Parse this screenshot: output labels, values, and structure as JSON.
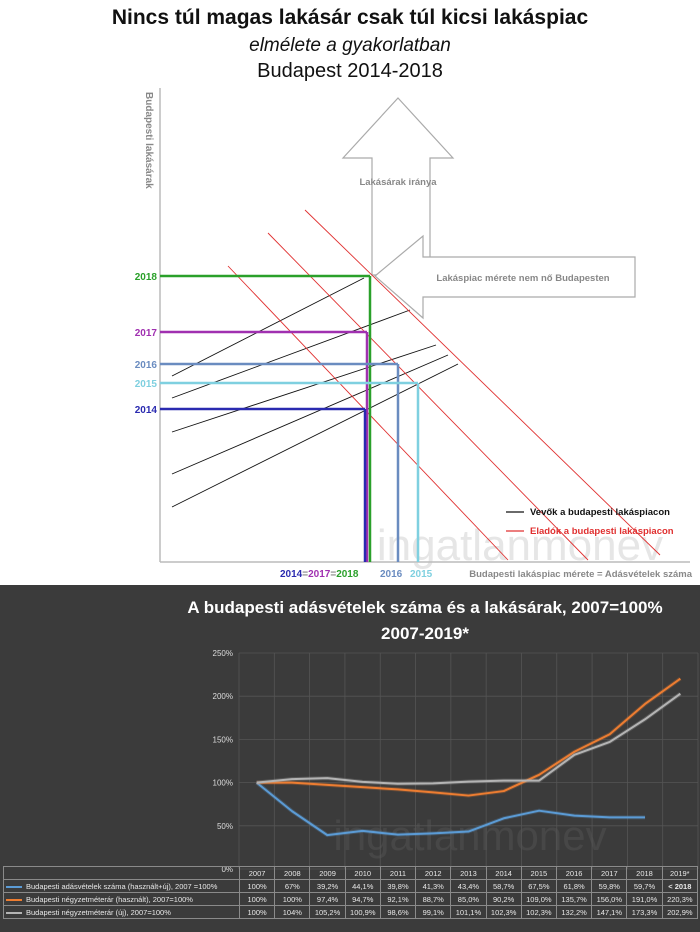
{
  "top_chart": {
    "title": "Nincs túl magas lakásár csak túl kicsi lakáspiac",
    "subtitle": "elmélete a gyakorlatban",
    "subtitle2": "Budapest 2014-2018",
    "ylabel": "Budapesti lakásárak",
    "xlabel": "Budapesti lakáspiac mérete = Adásvételek száma",
    "arrow_up_label": "Lakásárak iránya",
    "arrow_left_label": "Lakáspiac mérete nem nő Budapesten",
    "year_labels": [
      {
        "year": "2018",
        "color": "#2aa02a"
      },
      {
        "year": "2017",
        "color": "#a030b0"
      },
      {
        "year": "2016",
        "color": "#6a8cc0"
      },
      {
        "year": "2015",
        "color": "#7fd0e0"
      },
      {
        "year": "2014",
        "color": "#2a2ab0"
      }
    ],
    "x_labels": {
      "part1": "2014",
      "sep1": "=",
      "part2": "2017",
      "sep2": "=",
      "part3": "2018",
      "label2016": "2016",
      "label2015": "2015"
    },
    "legend": [
      {
        "label": "Vevők a budapesti lakáspiacon",
        "color": "#111111"
      },
      {
        "label": "Eladók a budapesti lakáspiacon",
        "color": "#e03030"
      }
    ],
    "watermark": "ingatlanmonev"
  },
  "chart_data": {
    "type": "line",
    "title": "A budapesti  adásvételek száma és  a lakásárak, 2007=100%",
    "subtitle": "2007-2019*",
    "categories": [
      "2007",
      "2008",
      "2009",
      "2010",
      "2011",
      "2012",
      "2013",
      "2014",
      "2015",
      "2016",
      "2017",
      "2018",
      "2019*"
    ],
    "y_ticks": [
      "0%",
      "50%",
      "100%",
      "150%",
      "200%",
      "250%"
    ],
    "ylim": [
      0,
      250
    ],
    "grid": true,
    "watermark": "ingatlanmonev",
    "series": [
      {
        "name": "Budapesti adásvételek száma (használt+új), 2007 =100%",
        "color": "#5b9bd5",
        "values": [
          100,
          67,
          39.2,
          44.1,
          39.8,
          41.3,
          43.4,
          58.7,
          67.5,
          61.8,
          59.8,
          59.7,
          null
        ],
        "labels": [
          "100%",
          "67%",
          "39,2%",
          "44,1%",
          "39,8%",
          "41,3%",
          "43,4%",
          "58,7%",
          "67,5%",
          "61,8%",
          "59,8%",
          "59,7%",
          "< 2018"
        ]
      },
      {
        "name": "Budapesti négyzetméterár (használt), 2007=100%",
        "color": "#ed7d31",
        "values": [
          100,
          100,
          97.4,
          94.7,
          92.1,
          88.7,
          85.0,
          90.2,
          109.0,
          135.7,
          156.0,
          191.0,
          220.3
        ],
        "labels": [
          "100%",
          "100%",
          "97,4%",
          "94,7%",
          "92,1%",
          "88,7%",
          "85,0%",
          "90,2%",
          "109,0%",
          "135,7%",
          "156,0%",
          "191,0%",
          "220,3%"
        ]
      },
      {
        "name": "Budapesti négyzetméterár (új), 2007=100%",
        "color": "#b4b4b4",
        "values": [
          100,
          104,
          105.2,
          100.9,
          98.6,
          99.1,
          101.1,
          102.3,
          102.3,
          132.2,
          147.1,
          173.3,
          202.9
        ],
        "labels": [
          "100%",
          "104%",
          "105,2%",
          "100,9%",
          "98,6%",
          "99,1%",
          "101,1%",
          "102,3%",
          "102,3%",
          "132,2%",
          "147,1%",
          "173,3%",
          "202,9%"
        ]
      }
    ]
  }
}
